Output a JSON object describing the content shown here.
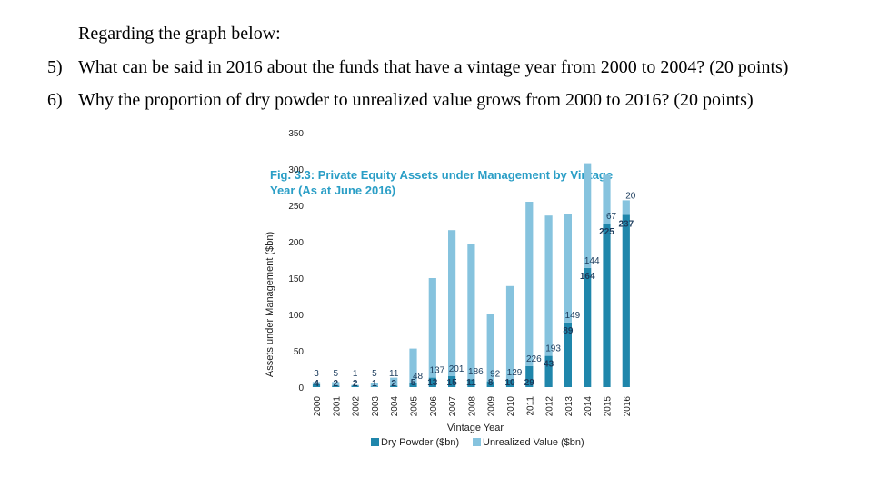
{
  "intro": "Regarding the graph below:",
  "questions": [
    {
      "number": "5)",
      "text": "What can be said in 2016 about the funds that have a vintage year from 2000 to 2004? (20 points)"
    },
    {
      "number": "6)",
      "text": "Why the proportion of dry powder to unrealized value grows from 2000 to 2016? (20 points)"
    }
  ],
  "colors": {
    "title": "#2a9ec6",
    "dry_powder": "#1f86ab",
    "unrealized": "#86c3de",
    "axis_text": "#222222",
    "label_dark": "#1a3b5c"
  },
  "chart_data": {
    "type": "bar",
    "stacked": true,
    "title_line1": "Fig. 3.3: Private Equity Assets under Management by Vintage",
    "title_line2": "Year (As at June 2016)",
    "xlabel": "Vintage Year",
    "ylabel": "Assets under Management ($bn)",
    "ylim": [
      0,
      350
    ],
    "yticks": [
      0,
      50,
      100,
      150,
      200,
      250,
      300,
      350
    ],
    "categories": [
      "2000",
      "2001",
      "2002",
      "2003",
      "2004",
      "2005",
      "2006",
      "2007",
      "2008",
      "2009",
      "2010",
      "2011",
      "2012",
      "2013",
      "2014",
      "2015",
      "2016"
    ],
    "series": [
      {
        "name": "Dry Powder ($bn)",
        "values": [
          4,
          2,
          2,
          1,
          2,
          5,
          13,
          15,
          11,
          8,
          10,
          29,
          43,
          89,
          164,
          225,
          237
        ]
      },
      {
        "name": "Unrealized Value ($bn)",
        "values": [
          3,
          5,
          1,
          5,
          11,
          48,
          137,
          201,
          186,
          92,
          129,
          226,
          193,
          149,
          144,
          67,
          20
        ]
      }
    ],
    "legend_position": "bottom"
  }
}
